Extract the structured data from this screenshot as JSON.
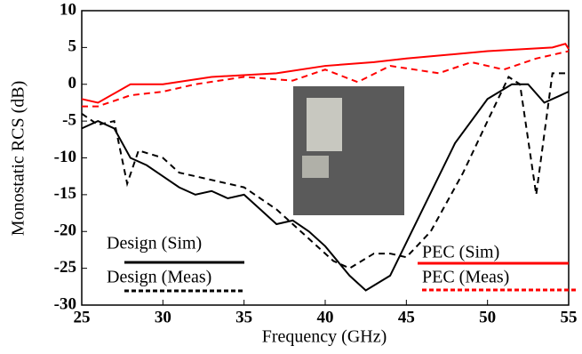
{
  "chart_data": {
    "type": "line",
    "xlabel": "Frequency (GHz)",
    "ylabel": "Monostatic RCS (dB)",
    "xlim": [
      25,
      55
    ],
    "xticks": [
      25,
      30,
      35,
      40,
      45,
      50,
      55
    ],
    "ylim": [
      -30,
      10
    ],
    "yticks": [
      -30,
      -25,
      -20,
      -15,
      -10,
      -5,
      0,
      5,
      10
    ],
    "series": [
      {
        "name": "Design (Sim)",
        "color": "#000000",
        "dash": false,
        "x": [
          25,
          26,
          27,
          28,
          29,
          30,
          31,
          32,
          33,
          34,
          35,
          36,
          37,
          38,
          39,
          40,
          41.5,
          42.5,
          44,
          46,
          48,
          50,
          51.5,
          52.5,
          53.5,
          54.5,
          55
        ],
        "values": [
          -6,
          -5,
          -6,
          -10,
          -11,
          -12.5,
          -14,
          -15,
          -14.5,
          -15.5,
          -15,
          -17,
          -19,
          -18.5,
          -20,
          -22,
          -26,
          -28,
          -26,
          -17,
          -8,
          -2,
          0,
          0,
          -2.5,
          -1.5,
          -1
        ]
      },
      {
        "name": "Design (Meas)",
        "color": "#000000",
        "dash": true,
        "x": [
          25,
          26,
          27,
          27.8,
          28.5,
          30,
          31,
          33,
          35,
          36,
          37,
          38,
          39,
          40.5,
          41.5,
          43,
          44,
          45,
          46.5,
          48.5,
          50,
          51.3,
          52,
          53,
          54,
          55
        ],
        "values": [
          -4,
          -5.5,
          -5,
          -13.5,
          -9,
          -10,
          -12,
          -13,
          -14,
          -15.5,
          -17,
          -19,
          -21,
          -24,
          -25,
          -23,
          -23,
          -23.5,
          -20,
          -12,
          -5,
          1,
          0,
          -15,
          1.5,
          1.5
        ]
      },
      {
        "name": "PEC (Sim)",
        "color": "#ff0000",
        "dash": false,
        "x": [
          25,
          26,
          28,
          30,
          33,
          37,
          40,
          43,
          45,
          50,
          54,
          54.8,
          55
        ],
        "values": [
          -2,
          -2.5,
          0,
          0,
          1,
          1.5,
          2.5,
          3,
          3.5,
          4.5,
          5,
          5.5,
          4.8
        ]
      },
      {
        "name": "PEC (Meas)",
        "color": "#ff0000",
        "dash": true,
        "x": [
          25,
          26,
          28,
          30,
          32,
          35,
          38,
          40,
          42,
          44,
          47,
          49,
          51,
          53,
          55
        ],
        "values": [
          -3,
          -3,
          -1.5,
          -1,
          0,
          1,
          0.5,
          2,
          0.3,
          2.5,
          1.5,
          3,
          2,
          3.5,
          4.5
        ]
      }
    ]
  }
}
